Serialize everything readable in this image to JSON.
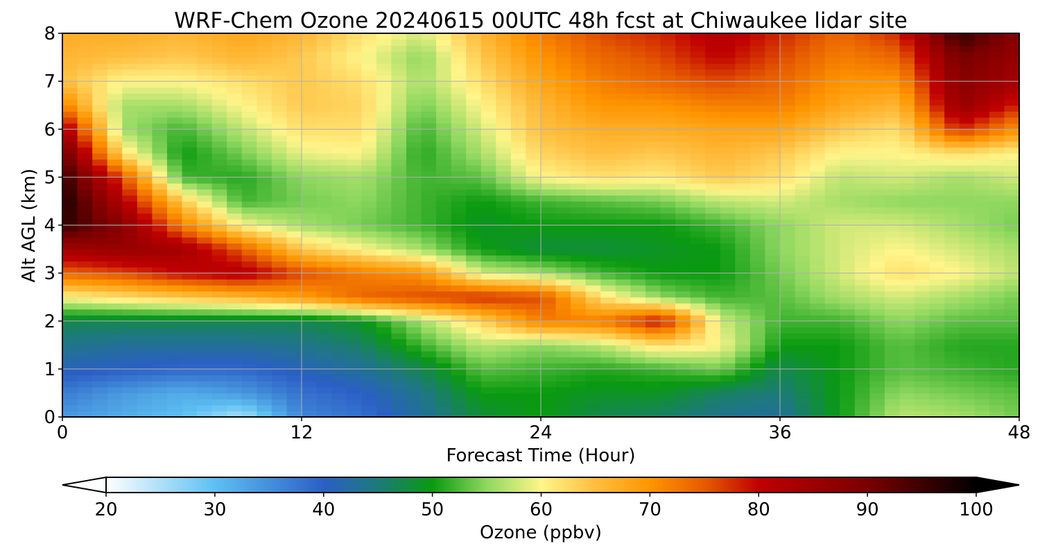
{
  "chart_data": {
    "type": "heatmap",
    "title": "WRF-Chem Ozone  20240615 00UTC 48h fcst at Chiwaukee lidar site",
    "xlabel": "Forecast Time (Hour)",
    "ylabel": "Alt AGL (km)",
    "xlim": [
      0,
      48
    ],
    "ylim": [
      0,
      8
    ],
    "x_ticks": [
      "0",
      "12",
      "24",
      "36",
      "48"
    ],
    "y_ticks": [
      "0",
      "1",
      "2",
      "3",
      "4",
      "5",
      "6",
      "7",
      "8"
    ],
    "grid": true,
    "colorbar": {
      "label": "Ozone  (ppbv)",
      "min": 20,
      "max": 100,
      "ticks": [
        "20",
        "30",
        "40",
        "50",
        "60",
        "70",
        "80",
        "90",
        "100"
      ],
      "extend": "both",
      "orientation": "horizontal",
      "color_stops": [
        [
          20,
          "#ffffff"
        ],
        [
          30,
          "#5ec0f2"
        ],
        [
          40,
          "#2b5fc5"
        ],
        [
          45,
          "#1d7a7a"
        ],
        [
          50,
          "#0a9a10"
        ],
        [
          55,
          "#8fd860"
        ],
        [
          60,
          "#fff58a"
        ],
        [
          65,
          "#ffbe40"
        ],
        [
          70,
          "#ff9500"
        ],
        [
          75,
          "#e65c00"
        ],
        [
          80,
          "#c00000"
        ],
        [
          90,
          "#7a0000"
        ],
        [
          100,
          "#000000"
        ]
      ]
    },
    "x": [
      0,
      3,
      6,
      9,
      12,
      15,
      18,
      21,
      24,
      27,
      30,
      33,
      36,
      39,
      42,
      45,
      48
    ],
    "y": [
      0,
      0.5,
      1,
      1.5,
      2,
      2.5,
      3,
      3.5,
      4,
      4.5,
      5,
      5.5,
      6,
      6.5,
      7,
      7.5,
      8
    ],
    "z_units": "ppbv",
    "z": [
      [
        34,
        32,
        30,
        25,
        36,
        38,
        43,
        48,
        50,
        47,
        46,
        44,
        43,
        50,
        57,
        56,
        54
      ],
      [
        37,
        34,
        32,
        34,
        38,
        40,
        44,
        50,
        50,
        49,
        49,
        46,
        45,
        50,
        55,
        54,
        53
      ],
      [
        41,
        40,
        39,
        39,
        41,
        43,
        47,
        53,
        52,
        51,
        52,
        54,
        47,
        50,
        53,
        52,
        51
      ],
      [
        44,
        43,
        43,
        43,
        44,
        46,
        52,
        57,
        55,
        57,
        62,
        60,
        50,
        50,
        53,
        51,
        51
      ],
      [
        47,
        47,
        47,
        47,
        47,
        49,
        56,
        63,
        72,
        72,
        80,
        58,
        52,
        52,
        55,
        53,
        53
      ],
      [
        60,
        62,
        64,
        66,
        69,
        74,
        76,
        78,
        76,
        62,
        55,
        52,
        53,
        56,
        58,
        56,
        54
      ],
      [
        74,
        76,
        80,
        82,
        76,
        72,
        70,
        58,
        56,
        52,
        50,
        50,
        54,
        58,
        62,
        60,
        57
      ],
      [
        84,
        86,
        84,
        75,
        64,
        60,
        56,
        50,
        48,
        48,
        49,
        50,
        55,
        58,
        60,
        58,
        56
      ],
      [
        96,
        88,
        72,
        60,
        56,
        54,
        52,
        49,
        50,
        50,
        50,
        52,
        55,
        58,
        58,
        56,
        54
      ],
      [
        98,
        82,
        64,
        52,
        54,
        55,
        52,
        50,
        52,
        53,
        54,
        57,
        58,
        56,
        55,
        55,
        55
      ],
      [
        96,
        76,
        52,
        51,
        55,
        56,
        52,
        53,
        60,
        62,
        61,
        64,
        62,
        57,
        58,
        56,
        58
      ],
      [
        92,
        62,
        50,
        54,
        59,
        60,
        51,
        56,
        63,
        65,
        64,
        66,
        64,
        60,
        60,
        62,
        60
      ],
      [
        84,
        56,
        52,
        57,
        62,
        62,
        52,
        58,
        65,
        67,
        67,
        68,
        68,
        64,
        62,
        78,
        70
      ],
      [
        72,
        56,
        56,
        60,
        64,
        63,
        54,
        60,
        66,
        70,
        70,
        72,
        72,
        68,
        66,
        86,
        78
      ],
      [
        65,
        60,
        60,
        62,
        64,
        62,
        56,
        62,
        68,
        72,
        74,
        76,
        74,
        70,
        70,
        88,
        84
      ],
      [
        66,
        65,
        64,
        66,
        64,
        60,
        55,
        64,
        70,
        74,
        76,
        80,
        76,
        72,
        74,
        90,
        86
      ],
      [
        67,
        67,
        66,
        68,
        66,
        62,
        58,
        66,
        72,
        76,
        78,
        82,
        78,
        74,
        78,
        96,
        88
      ]
    ]
  }
}
